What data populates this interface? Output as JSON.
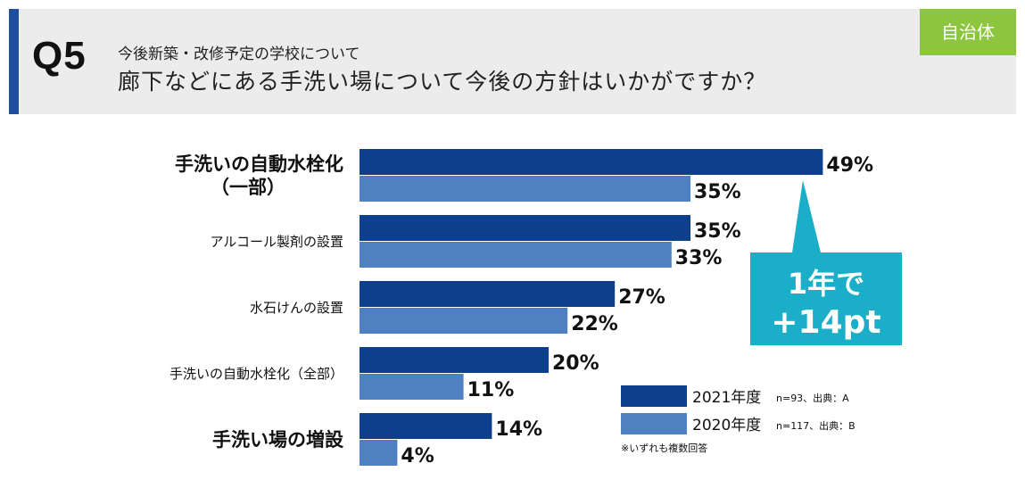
{
  "header": {
    "question_number": "Q5",
    "subtitle": "今後新築・改修予定の学校について",
    "title": "廊下などにある手洗い場について今後の方針はいかがですか？",
    "badge": "自治体"
  },
  "colors": {
    "series_2021": "#0e3f8c",
    "series_2020": "#4f80c1",
    "callout": "#1aaec9",
    "badge": "#8cc63f"
  },
  "chart_data": {
    "type": "bar",
    "orientation": "horizontal",
    "categories": [
      [
        "手洗いの自動水栓化",
        "（一部）"
      ],
      [
        "アルコール製剤の設置"
      ],
      [
        "水石けんの設置"
      ],
      [
        "手洗いの自動水栓化（全部）"
      ],
      [
        "手洗い場の増設"
      ]
    ],
    "category_sizes": [
      "large",
      "small",
      "small",
      "small",
      "large"
    ],
    "unit": "%",
    "xlim": [
      0,
      60
    ],
    "series": [
      {
        "name": "2021年度",
        "note": "n=93、出典：A",
        "values": [
          49,
          35,
          27,
          20,
          14
        ]
      },
      {
        "name": "2020年度",
        "note": "n=117、出典：B",
        "values": [
          35,
          33,
          22,
          11,
          4
        ]
      }
    ],
    "footnote": "※いずれも複数回答",
    "callout": {
      "line1": "1年で",
      "line2": "+14pt",
      "category_index": 0
    }
  }
}
